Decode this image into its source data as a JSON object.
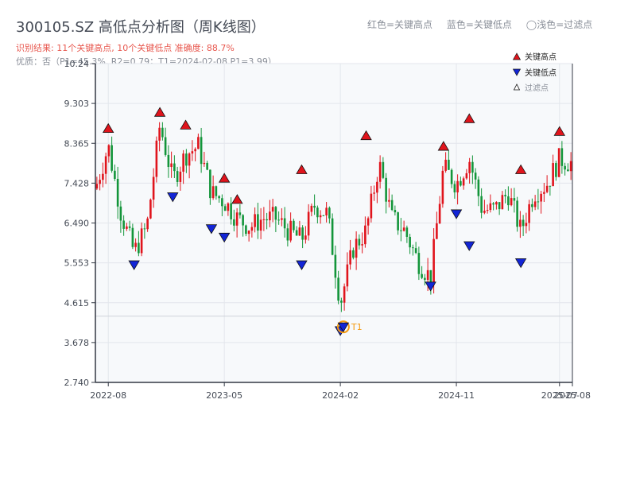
{
  "header": {
    "title": "300105.SZ 高低点分析图（周K线图）",
    "result": "识别结果: 11个关键高点, 10个关键低点  准确度: 88.7%",
    "quality": "优质：否（P1=45.3%, R2=0.79；T1=2024-02-08,P1=3.99）"
  },
  "top_legend": [
    "红色=关键高点",
    "蓝色=关键低点",
    "◯浅色=过滤点"
  ],
  "colors": {
    "up": "#e0141c",
    "down": "#13953a",
    "high_marker": "#e0141c",
    "low_marker": "#1225d6",
    "t1": "#f59a10",
    "axis": "#333844",
    "grid": "#e3e6ec",
    "plot_bg": "#f7f9fb"
  },
  "chart_data": {
    "type": "candlestick",
    "title": "300105.SZ 高低点分析图（周K线图）",
    "y_ticks": [
      "2.740",
      "3.678",
      "4.615",
      "5.553",
      "6.490",
      "7.428",
      "8.365",
      "9.303",
      "10.24"
    ],
    "ylim": [
      2.74,
      10.24
    ],
    "x_ticks": [
      {
        "label": "2022-08",
        "date": "2022-08"
      },
      {
        "label": "2023-05",
        "date": "2023-05"
      },
      {
        "label": "2024-02",
        "date": "2024-02"
      },
      {
        "label": "2024-11",
        "date": "2024-11"
      },
      {
        "label": "2025-07",
        "date": "2025-07"
      },
      {
        "label": "2025-08",
        "date": "2025-08"
      }
    ],
    "xlim": [
      "2022-07",
      "2025-08"
    ],
    "legend": {
      "position": "top-right",
      "entries": [
        {
          "name": "关键高点",
          "marker": "up-triangle-red"
        },
        {
          "name": "关键低点",
          "marker": "down-triangle-blue"
        },
        {
          "name": "过滤点",
          "marker": "small-triangle-outline"
        }
      ]
    },
    "anchors": [
      [
        "2022-07",
        7.3
      ],
      [
        "2022-08",
        8.3
      ],
      [
        "2022-09",
        6.7
      ],
      [
        "2022-10",
        5.8
      ],
      [
        "2022-11",
        6.4
      ],
      [
        "2022-12",
        8.8
      ],
      [
        "2023-01",
        7.5
      ],
      [
        "2023-02",
        8.1
      ],
      [
        "2023-03",
        8.3
      ],
      [
        "2023-04",
        7.2
      ],
      [
        "2023-05",
        7.0
      ],
      [
        "2023-06",
        6.6
      ],
      [
        "2023-07",
        6.4
      ],
      [
        "2023-08",
        6.6
      ],
      [
        "2023-09",
        6.6
      ],
      [
        "2023-10",
        6.3
      ],
      [
        "2023-11",
        6.1
      ],
      [
        "2023-12",
        6.9
      ],
      [
        "2024-01",
        6.7
      ],
      [
        "2024-02",
        4.6
      ],
      [
        "2024-03",
        5.9
      ],
      [
        "2024-04",
        6.3
      ],
      [
        "2024-05",
        7.9
      ],
      [
        "2024-06",
        6.6
      ],
      [
        "2024-07",
        6.3
      ],
      [
        "2024-08",
        5.6
      ],
      [
        "2024-09",
        5.2
      ],
      [
        "2024-10",
        7.8
      ],
      [
        "2024-11",
        7.4
      ],
      [
        "2024-12",
        8.0
      ],
      [
        "2025-01",
        6.8
      ],
      [
        "2025-02",
        6.8
      ],
      [
        "2025-03",
        7.2
      ],
      [
        "2025-04",
        6.3
      ],
      [
        "2025-05",
        7.2
      ],
      [
        "2025-06",
        7.4
      ],
      [
        "2025-07",
        8.0
      ],
      [
        "2025-08",
        7.9
      ]
    ],
    "key_highs": [
      {
        "date": "2022-08",
        "value": 8.62
      },
      {
        "date": "2022-12",
        "value": 9.0
      },
      {
        "date": "2023-02",
        "value": 8.7
      },
      {
        "date": "2023-05",
        "value": 7.45
      },
      {
        "date": "2023-06",
        "value": 6.95
      },
      {
        "date": "2023-11",
        "value": 7.65
      },
      {
        "date": "2024-04",
        "value": 8.45
      },
      {
        "date": "2024-10",
        "value": 8.2
      },
      {
        "date": "2024-12",
        "value": 8.85
      },
      {
        "date": "2025-04",
        "value": 7.65
      },
      {
        "date": "2025-07",
        "value": 8.55
      }
    ],
    "key_lows": [
      {
        "date": "2022-10",
        "value": 5.6
      },
      {
        "date": "2023-01",
        "value": 7.2
      },
      {
        "date": "2023-04",
        "value": 6.45
      },
      {
        "date": "2023-05",
        "value": 6.25
      },
      {
        "date": "2023-11",
        "value": 5.6
      },
      {
        "date": "2024-02",
        "value": 4.05
      },
      {
        "date": "2024-09",
        "value": 5.1
      },
      {
        "date": "2024-11",
        "value": 6.8
      },
      {
        "date": "2024-12",
        "value": 6.05
      },
      {
        "date": "2025-04",
        "value": 5.65
      }
    ],
    "t1": {
      "label": "T1",
      "date": "2024-02-08",
      "value": 3.99
    },
    "t1_level": 4.3,
    "grid": true
  }
}
